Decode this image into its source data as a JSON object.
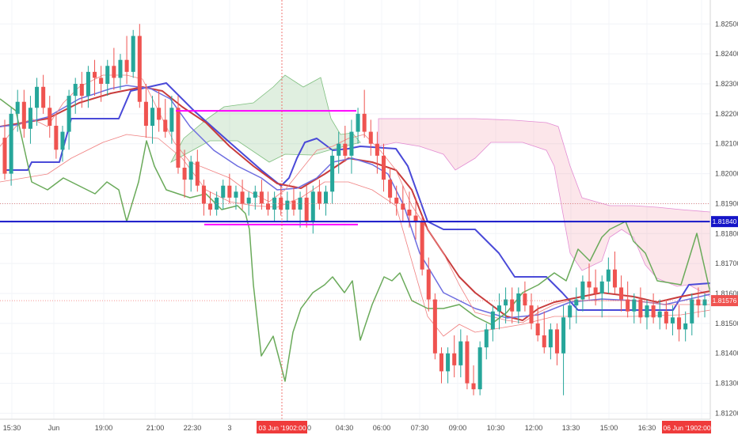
{
  "chart_data": {
    "type": "candlestick",
    "symbol_pair_note": "",
    "price_axis": {
      "ticks": [
        "1.82500",
        "1.82400",
        "1.82300",
        "1.82200",
        "1.82100",
        "1.82000",
        "1.81900",
        "1.81800",
        "1.81700",
        "1.81600",
        "1.81500",
        "1.81400",
        "1.81300",
        "1.81200"
      ],
      "ylim": [
        1.8118,
        1.8258
      ]
    },
    "time_axis": {
      "ticks": [
        "15:30",
        "Jun",
        "19:00",
        "21:00",
        "22:30",
        "3",
        "00",
        "04:30",
        "06:00",
        "07:30",
        "09:00",
        "10:30",
        "12:00",
        "13:30",
        "15:00",
        "16:30",
        "02:00"
      ]
    },
    "crosshair_labels": {
      "time_left": "03 Jun '19",
      "time_left_hour": "02:00",
      "time_right": "06 Jun '19",
      "time_right_hour": "02:00"
    },
    "price_labels": {
      "horizontal_line": "1.81840",
      "last_price": "1.81576"
    },
    "horizontal_line_value": 1.8184,
    "last_price_value": 1.81576,
    "dotted_line_value": 1.819,
    "support_resistance": [
      {
        "color": "#ff00ff",
        "price": 1.8221
      },
      {
        "color": "#ff00ff",
        "price": 1.8183
      }
    ],
    "candles": [
      [
        1.8212,
        1.8218,
        1.8198,
        1.82
      ],
      [
        1.82,
        1.8222,
        1.8196,
        1.822
      ],
      [
        1.822,
        1.8228,
        1.8214,
        1.8224
      ],
      [
        1.8224,
        1.8228,
        1.8212,
        1.8215
      ],
      [
        1.8215,
        1.8226,
        1.821,
        1.8222
      ],
      [
        1.8222,
        1.8232,
        1.8216,
        1.8229
      ],
      [
        1.8229,
        1.8233,
        1.822,
        1.8222
      ],
      [
        1.8222,
        1.8226,
        1.8212,
        1.8216
      ],
      [
        1.8216,
        1.822,
        1.8205,
        1.8208
      ],
      [
        1.8208,
        1.8216,
        1.8204,
        1.8214
      ],
      [
        1.8214,
        1.8228,
        1.8208,
        1.8226
      ],
      [
        1.8226,
        1.8232,
        1.822,
        1.823
      ],
      [
        1.823,
        1.8234,
        1.8222,
        1.8226
      ],
      [
        1.8226,
        1.8236,
        1.8222,
        1.8234
      ],
      [
        1.8234,
        1.8238,
        1.8226,
        1.8232
      ],
      [
        1.8232,
        1.8236,
        1.8224,
        1.823
      ],
      [
        1.823,
        1.8238,
        1.8226,
        1.8236
      ],
      [
        1.8236,
        1.8242,
        1.8228,
        1.8232
      ],
      [
        1.8232,
        1.824,
        1.8228,
        1.8238
      ],
      [
        1.8238,
        1.8246,
        1.823,
        1.8234
      ],
      [
        1.8234,
        1.8248,
        1.8232,
        1.8246
      ],
      [
        1.8246,
        1.825,
        1.8222,
        1.8224
      ],
      [
        1.8224,
        1.823,
        1.8212,
        1.8216
      ],
      [
        1.8216,
        1.8226,
        1.821,
        1.8222
      ],
      [
        1.8222,
        1.8228,
        1.8214,
        1.8218
      ],
      [
        1.8218,
        1.8225,
        1.8212,
        1.8214
      ],
      [
        1.8214,
        1.8226,
        1.821,
        1.8222
      ],
      [
        1.8222,
        1.8226,
        1.82,
        1.8202
      ],
      [
        1.8202,
        1.8208,
        1.8192,
        1.8198
      ],
      [
        1.8198,
        1.8206,
        1.8194,
        1.8204
      ],
      [
        1.8204,
        1.8208,
        1.8194,
        1.8196
      ],
      [
        1.8196,
        1.8198,
        1.8186,
        1.819
      ],
      [
        1.819,
        1.8194,
        1.8186,
        1.8188
      ],
      [
        1.8188,
        1.8194,
        1.8186,
        1.8192
      ],
      [
        1.8192,
        1.8198,
        1.8188,
        1.8196
      ],
      [
        1.8196,
        1.82,
        1.819,
        1.8192
      ],
      [
        1.8192,
        1.8196,
        1.8188,
        1.8194
      ],
      [
        1.8194,
        1.8198,
        1.8188,
        1.819
      ],
      [
        1.819,
        1.8194,
        1.8186,
        1.8192
      ],
      [
        1.8192,
        1.8196,
        1.8188,
        1.8194
      ],
      [
        1.8194,
        1.8198,
        1.8188,
        1.819
      ],
      [
        1.819,
        1.8194,
        1.8186,
        1.8188
      ],
      [
        1.8188,
        1.8194,
        1.8184,
        1.8192
      ],
      [
        1.8192,
        1.8196,
        1.8186,
        1.8188
      ],
      [
        1.8188,
        1.8194,
        1.8184,
        1.8191
      ],
      [
        1.8191,
        1.8196,
        1.8186,
        1.8188
      ],
      [
        1.8188,
        1.8194,
        1.8182,
        1.8192
      ],
      [
        1.8192,
        1.8196,
        1.8182,
        1.8184
      ],
      [
        1.8184,
        1.8196,
        1.818,
        1.8194
      ],
      [
        1.8194,
        1.8198,
        1.8188,
        1.819
      ],
      [
        1.819,
        1.8196,
        1.8186,
        1.8194
      ],
      [
        1.8194,
        1.8208,
        1.819,
        1.8206
      ],
      [
        1.8206,
        1.8214,
        1.82,
        1.821
      ],
      [
        1.821,
        1.8216,
        1.8204,
        1.8206
      ],
      [
        1.8206,
        1.8218,
        1.82,
        1.8214
      ],
      [
        1.8214,
        1.8222,
        1.821,
        1.822
      ],
      [
        1.822,
        1.8228,
        1.8212,
        1.8214
      ],
      [
        1.8214,
        1.8218,
        1.8206,
        1.821
      ],
      [
        1.821,
        1.8214,
        1.82,
        1.8206
      ],
      [
        1.8206,
        1.821,
        1.8194,
        1.8198
      ],
      [
        1.8198,
        1.8202,
        1.819,
        1.8192
      ],
      [
        1.8192,
        1.8196,
        1.8186,
        1.819
      ],
      [
        1.819,
        1.8196,
        1.8184,
        1.8188
      ],
      [
        1.8188,
        1.8194,
        1.8182,
        1.8186
      ],
      [
        1.8186,
        1.8192,
        1.8178,
        1.8184
      ],
      [
        1.8184,
        1.8186,
        1.8166,
        1.8168
      ],
      [
        1.8168,
        1.8172,
        1.8154,
        1.8158
      ],
      [
        1.8158,
        1.816,
        1.8138,
        1.814
      ],
      [
        1.814,
        1.8142,
        1.813,
        1.8134
      ],
      [
        1.8134,
        1.8142,
        1.813,
        1.814
      ],
      [
        1.814,
        1.8146,
        1.8132,
        1.8136
      ],
      [
        1.8136,
        1.8148,
        1.8132,
        1.8144
      ],
      [
        1.8144,
        1.8146,
        1.8128,
        1.813
      ],
      [
        1.813,
        1.8136,
        1.8126,
        1.8128
      ],
      [
        1.8128,
        1.8144,
        1.8126,
        1.8142
      ],
      [
        1.8142,
        1.815,
        1.8138,
        1.8148
      ],
      [
        1.8148,
        1.8156,
        1.8144,
        1.8154
      ],
      [
        1.8154,
        1.816,
        1.8148,
        1.8156
      ],
      [
        1.8156,
        1.8162,
        1.815,
        1.8158
      ],
      [
        1.8158,
        1.8162,
        1.815,
        1.8154
      ],
      [
        1.8154,
        1.8162,
        1.815,
        1.816
      ],
      [
        1.816,
        1.8164,
        1.8154,
        1.8156
      ],
      [
        1.8156,
        1.816,
        1.8148,
        1.815
      ],
      [
        1.815,
        1.8156,
        1.8144,
        1.8146
      ],
      [
        1.8146,
        1.8154,
        1.814,
        1.8142
      ],
      [
        1.8142,
        1.815,
        1.8138,
        1.8148
      ],
      [
        1.8148,
        1.815,
        1.8136,
        1.814
      ],
      [
        1.814,
        1.8156,
        1.8126,
        1.8152
      ],
      [
        1.8152,
        1.8158,
        1.8148,
        1.8156
      ],
      [
        1.8156,
        1.8162,
        1.815,
        1.8158
      ],
      [
        1.8158,
        1.8166,
        1.8154,
        1.8164
      ],
      [
        1.8164,
        1.817,
        1.8158,
        1.8162
      ],
      [
        1.8162,
        1.8168,
        1.8156,
        1.816
      ],
      [
        1.816,
        1.8166,
        1.8152,
        1.8164
      ],
      [
        1.8164,
        1.8172,
        1.816,
        1.8168
      ],
      [
        1.8168,
        1.8174,
        1.816,
        1.8162
      ],
      [
        1.8162,
        1.8166,
        1.8154,
        1.8158
      ],
      [
        1.8158,
        1.8164,
        1.8152,
        1.8154
      ],
      [
        1.8154,
        1.816,
        1.815,
        1.8158
      ],
      [
        1.8158,
        1.8162,
        1.815,
        1.8152
      ],
      [
        1.8152,
        1.8158,
        1.8148,
        1.8156
      ],
      [
        1.8156,
        1.816,
        1.815,
        1.8152
      ],
      [
        1.8152,
        1.8158,
        1.8148,
        1.8154
      ],
      [
        1.8154,
        1.8158,
        1.8148,
        1.815
      ],
      [
        1.815,
        1.8156,
        1.8146,
        1.8152
      ],
      [
        1.8152,
        1.8156,
        1.8144,
        1.8148
      ],
      [
        1.8148,
        1.8154,
        1.8144,
        1.815
      ],
      [
        1.815,
        1.816,
        1.8146,
        1.8158
      ],
      [
        1.8158,
        1.8162,
        1.8152,
        1.8156
      ],
      [
        1.8156,
        1.816,
        1.8152,
        1.8158
      ]
    ]
  }
}
